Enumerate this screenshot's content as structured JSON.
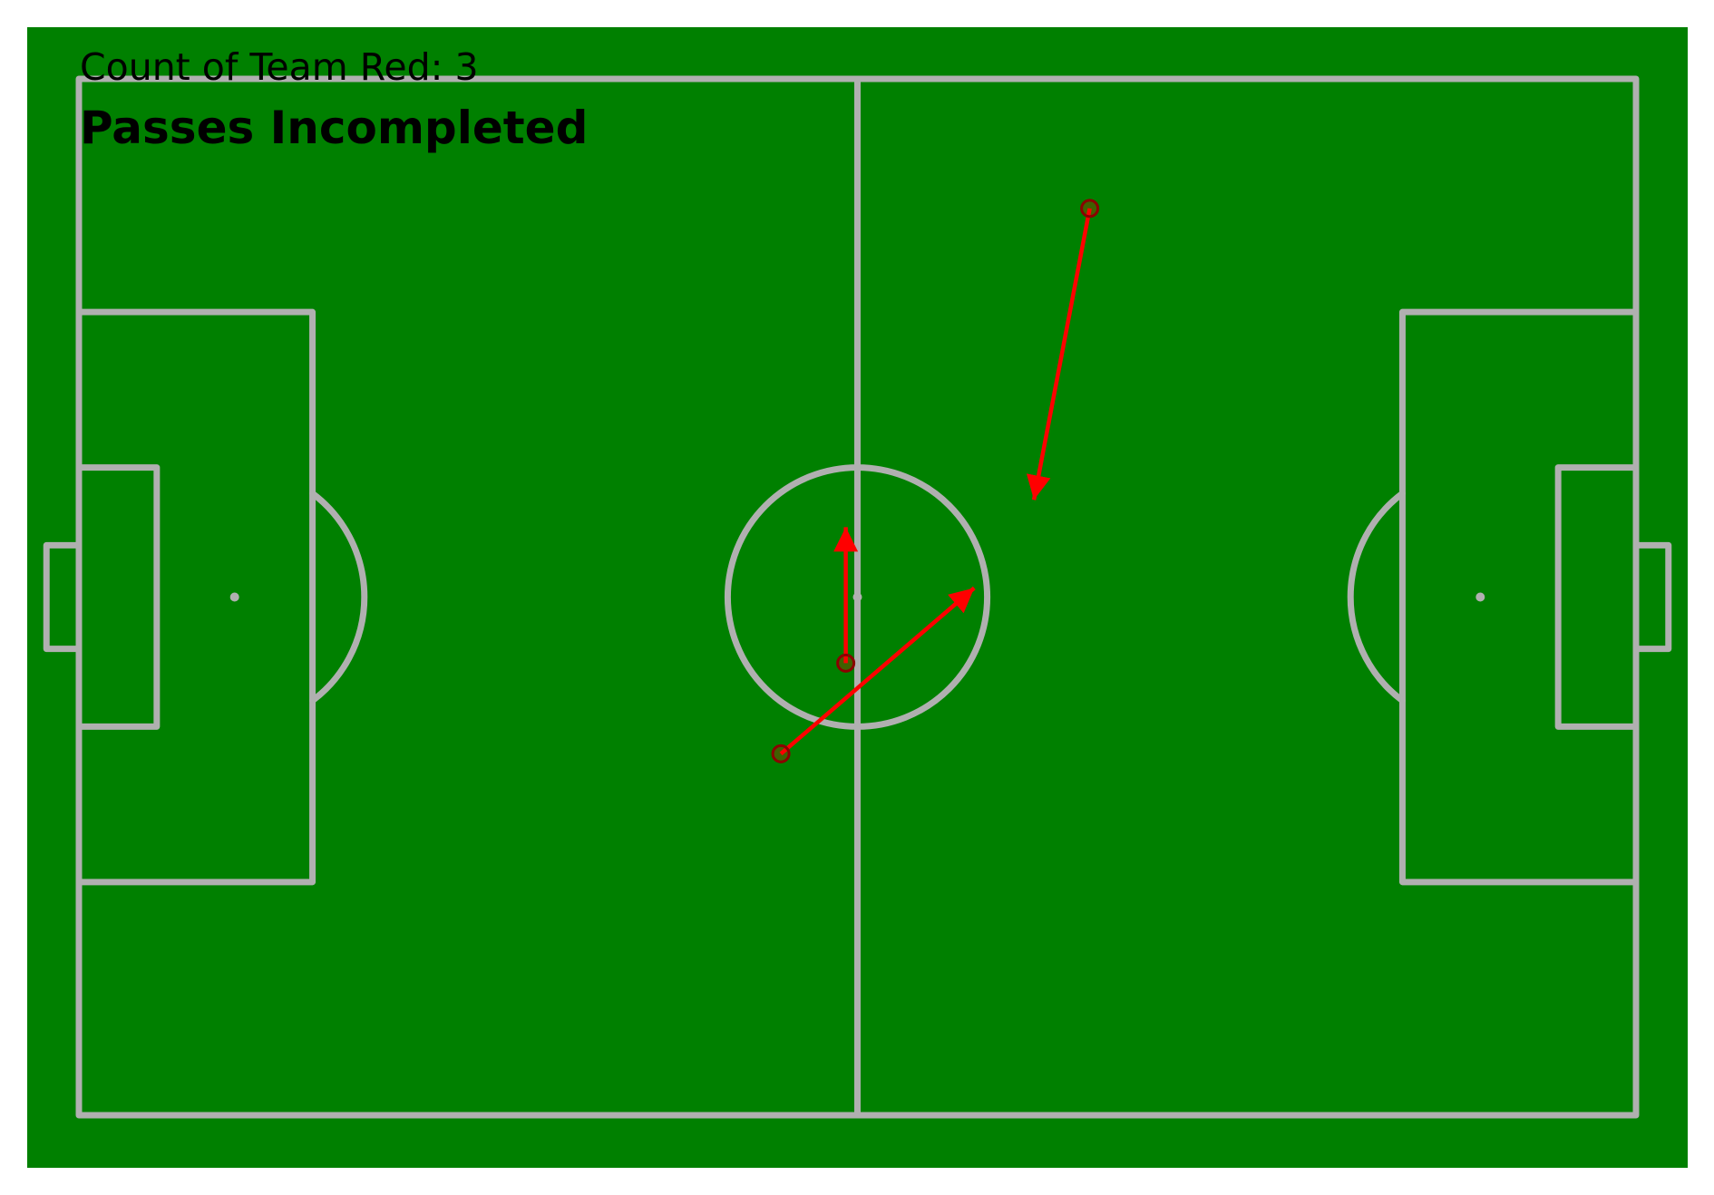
{
  "chart_data": {
    "type": "scatter",
    "subtitle": "Count of Team Red: 3",
    "title": "Passes Incompleted",
    "count": 3,
    "pitch": {
      "xlim": [
        0,
        120
      ],
      "ylim": [
        0,
        80
      ],
      "pitch_color": "#008000",
      "line_color": "#b0b0b0"
    },
    "series": [
      {
        "color": "#ff0000",
        "passes": [
          {
            "x": 59.1,
            "y": 45.1,
            "end_x": 59.1,
            "end_y": 34.6
          },
          {
            "x": 54.1,
            "y": 52.1,
            "end_x": 69.0,
            "end_y": 39.3
          },
          {
            "x": 77.9,
            "y": 10.0,
            "end_x": 73.6,
            "end_y": 32.5
          }
        ]
      }
    ]
  }
}
